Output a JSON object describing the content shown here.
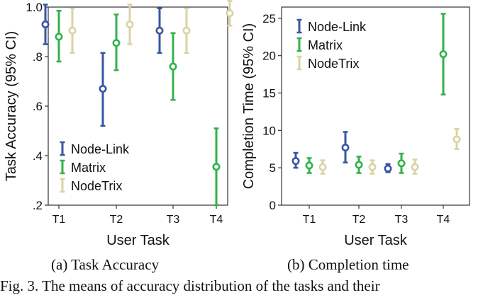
{
  "chart_data": [
    {
      "type": "error-bar",
      "xlabel": "User Task",
      "ylabel": "Task Accuracy (95% CI)",
      "categories": [
        "T1",
        "T2",
        "T3",
        "T4"
      ],
      "ylim": [
        0.2,
        1.0
      ],
      "yticks": [
        0.2,
        0.4,
        0.6,
        0.8,
        1.0
      ],
      "ytick_labels": [
        ".2",
        ".4",
        ".6",
        ".8",
        "1.0"
      ],
      "legend_position": "bottom-left",
      "series": [
        {
          "name": "Node-Link",
          "color": "#3a55a4",
          "mean": [
            0.93,
            0.67,
            0.905,
            null
          ],
          "lower": [
            0.85,
            0.52,
            0.815,
            null
          ],
          "upper": [
            1.01,
            0.815,
            0.995,
            null
          ]
        },
        {
          "name": "Matrix",
          "color": "#33b24a",
          "mean": [
            0.88,
            0.855,
            0.76,
            0.355
          ],
          "lower": [
            0.78,
            0.745,
            0.625,
            0.2
          ],
          "upper": [
            0.985,
            0.97,
            0.895,
            0.51
          ]
        },
        {
          "name": "NodeTrix",
          "color": "#d9d3a6",
          "mean": [
            0.905,
            0.93,
            0.905,
            0.975
          ],
          "lower": [
            0.815,
            0.85,
            0.815,
            0.925
          ],
          "upper": [
            0.995,
            1.01,
            0.995,
            1.025
          ]
        }
      ]
    },
    {
      "type": "error-bar",
      "xlabel": "User Task",
      "ylabel": "Completion Time (95% CI)",
      "categories": [
        "T1",
        "T2",
        "T3",
        "T4"
      ],
      "ylim": [
        0,
        26.5
      ],
      "yticks": [
        0,
        5,
        10,
        15,
        20,
        25
      ],
      "ytick_labels": [
        "0",
        "5",
        "10",
        "15",
        "20",
        "25"
      ],
      "legend_position": "top-left",
      "series": [
        {
          "name": "Node-Link",
          "color": "#3a55a4",
          "mean": [
            5.9,
            7.7,
            4.9,
            null
          ],
          "lower": [
            5.0,
            5.7,
            4.4,
            null
          ],
          "upper": [
            7.0,
            9.8,
            5.5,
            null
          ]
        },
        {
          "name": "Matrix",
          "color": "#33b24a",
          "mean": [
            5.3,
            5.4,
            5.6,
            20.2
          ],
          "lower": [
            4.3,
            4.3,
            4.3,
            14.8
          ],
          "upper": [
            6.3,
            6.5,
            6.9,
            25.6
          ]
        },
        {
          "name": "NodeTrix",
          "color": "#d9d3a6",
          "mean": [
            5.1,
            5.1,
            5.1,
            8.8
          ],
          "lower": [
            4.2,
            4.2,
            4.2,
            7.5
          ],
          "upper": [
            6.0,
            6.0,
            6.1,
            10.2
          ]
        }
      ]
    }
  ],
  "captions": [
    "(a)  Task Accuracy",
    "(b)  Completion time"
  ],
  "figure_text": "Fig. 3. The means of accuracy distribution of the tasks and their"
}
